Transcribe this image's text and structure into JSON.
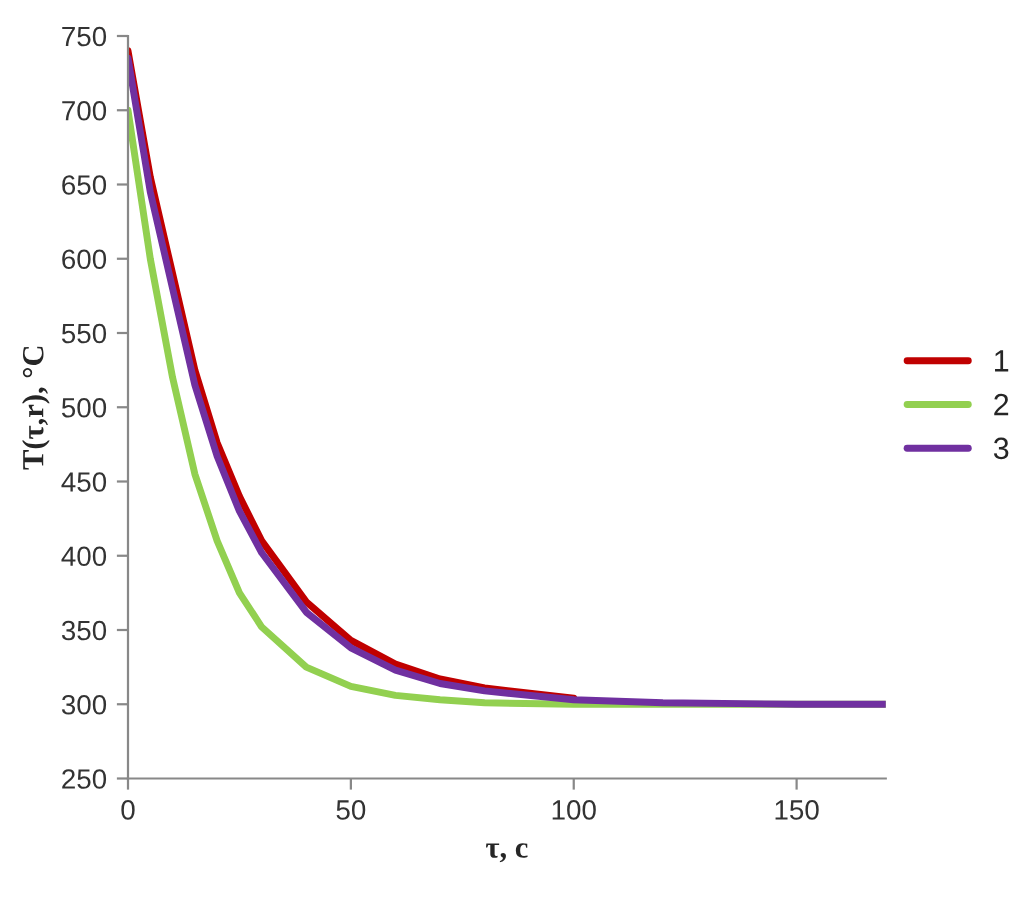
{
  "chart_data": {
    "type": "line",
    "xlabel": "τ, c",
    "ylabel": "T(τ,r), °C",
    "xlim": [
      0,
      170
    ],
    "xticks": [
      0,
      50,
      100,
      150
    ],
    "ylim": [
      250,
      750
    ],
    "yticks": [
      250,
      300,
      350,
      400,
      450,
      500,
      550,
      600,
      650,
      700,
      750
    ],
    "grid": false,
    "legend": "right",
    "marker": "none",
    "line_style": "solid",
    "x": [
      0,
      5,
      10,
      15,
      20,
      25,
      30,
      40,
      50,
      60,
      70,
      80,
      100,
      120,
      150,
      170
    ],
    "series": [
      {
        "name": "1",
        "color": "#c00000",
        "values": [
          740,
          655,
          590,
          525,
          476,
          440,
          410,
          369,
          343,
          327,
          317,
          311,
          304,
          null,
          null,
          null
        ]
      },
      {
        "name": "2",
        "color": "#92d050",
        "values": [
          700,
          600,
          520,
          455,
          410,
          375,
          352,
          325,
          312,
          306,
          303,
          301,
          300,
          300,
          300,
          300
        ]
      },
      {
        "name": "3",
        "color": "#7030a0",
        "values": [
          735,
          645,
          580,
          515,
          467,
          430,
          402,
          362,
          338,
          323,
          314,
          309,
          303,
          301,
          300,
          300
        ]
      }
    ]
  }
}
